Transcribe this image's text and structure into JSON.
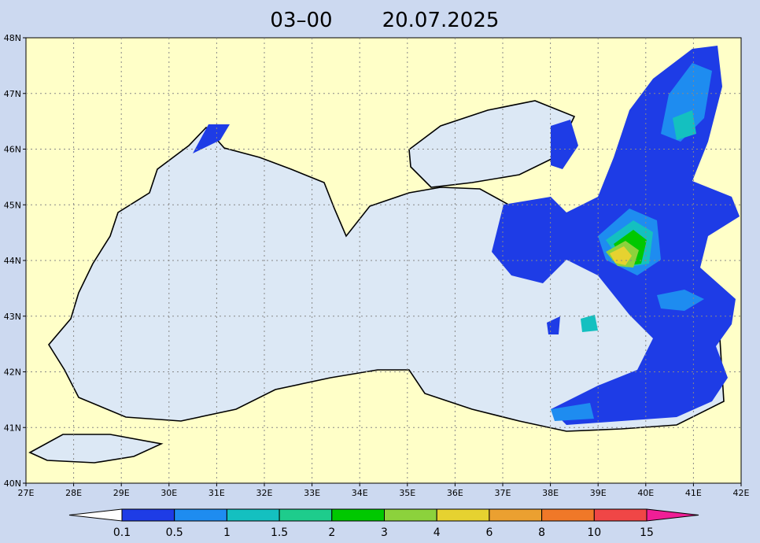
{
  "header": {
    "time": "03–00",
    "date": "20.07.2025"
  },
  "map": {
    "lat_labels": [
      "48N",
      "47N",
      "46N",
      "45N",
      "44N",
      "43N",
      "42N",
      "41N",
      "40N"
    ],
    "lon_labels": [
      "27E",
      "28E",
      "29E",
      "30E",
      "31E",
      "32E",
      "33E",
      "34E",
      "35E",
      "36E",
      "37E",
      "38E",
      "39E",
      "40E",
      "41E",
      "42E"
    ]
  },
  "legend": {
    "labels": [
      "0.1",
      "0.5",
      "1",
      "1.5",
      "2",
      "3",
      "4",
      "6",
      "8",
      "10",
      "15"
    ],
    "colors": [
      "#ffffff",
      "#1e3ce6",
      "#1e8cf0",
      "#14c0c0",
      "#1ecc8c",
      "#00c800",
      "#8cd23c",
      "#e6d230",
      "#eba030",
      "#f07828",
      "#f04646",
      "#f01e96"
    ]
  }
}
